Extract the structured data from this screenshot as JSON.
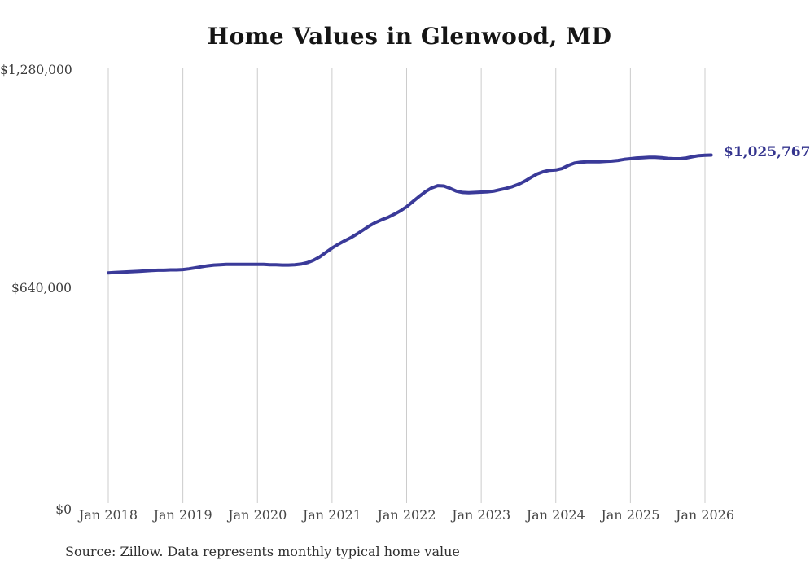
{
  "chart_data": {
    "type": "line",
    "title": "Home Values in Glenwood, MD",
    "source_note": "Source: Zillow. Data represents monthly typical home value",
    "end_label": "$1,025,767",
    "latest_value": 1025767,
    "line_color": "#3a3a99",
    "end_label_color": "#34348e",
    "grid_color": "#cccccc",
    "grid": "vertical-only",
    "legend": "none",
    "ylim": [
      0,
      1280000
    ],
    "y_ticks": [
      {
        "label": "$1,280,000",
        "value": 1280000
      },
      {
        "label": "$640,000",
        "value": 640000
      },
      {
        "label": "$0",
        "value": 0
      }
    ],
    "x_ticks": [
      "Jan 2018",
      "Jan 2019",
      "Jan 2020",
      "Jan 2021",
      "Jan 2022",
      "Jan 2023",
      "Jan 2024",
      "Jan 2025",
      "Jan 2026"
    ],
    "series": [
      {
        "name": "Typical home value",
        "start": "2018-01",
        "frequency": "monthly",
        "values": [
          680000,
          681000,
          682000,
          683000,
          684000,
          685000,
          686000,
          687000,
          688000,
          688000,
          689000,
          689000,
          690000,
          692000,
          695000,
          698000,
          701000,
          703000,
          704000,
          705000,
          705000,
          705000,
          705000,
          705000,
          705000,
          705000,
          704000,
          704000,
          703000,
          703000,
          704000,
          706000,
          710000,
          717000,
          727000,
          740000,
          753000,
          764000,
          774000,
          783000,
          794000,
          806000,
          818000,
          828000,
          836000,
          843000,
          852000,
          862000,
          874000,
          889000,
          904000,
          918000,
          929000,
          936000,
          935000,
          928000,
          920000,
          916000,
          915000,
          916000,
          917000,
          918000,
          920000,
          924000,
          928000,
          933000,
          940000,
          949000,
          960000,
          970000,
          977000,
          981000,
          982000,
          986000,
          995000,
          1002000,
          1005000,
          1006000,
          1006000,
          1006000,
          1007000,
          1008000,
          1010000,
          1013000,
          1015000,
          1017000,
          1018000,
          1019000,
          1019000,
          1018000,
          1016000,
          1015000,
          1015000,
          1017000,
          1021000,
          1024000,
          1025000,
          1025767
        ]
      }
    ]
  }
}
